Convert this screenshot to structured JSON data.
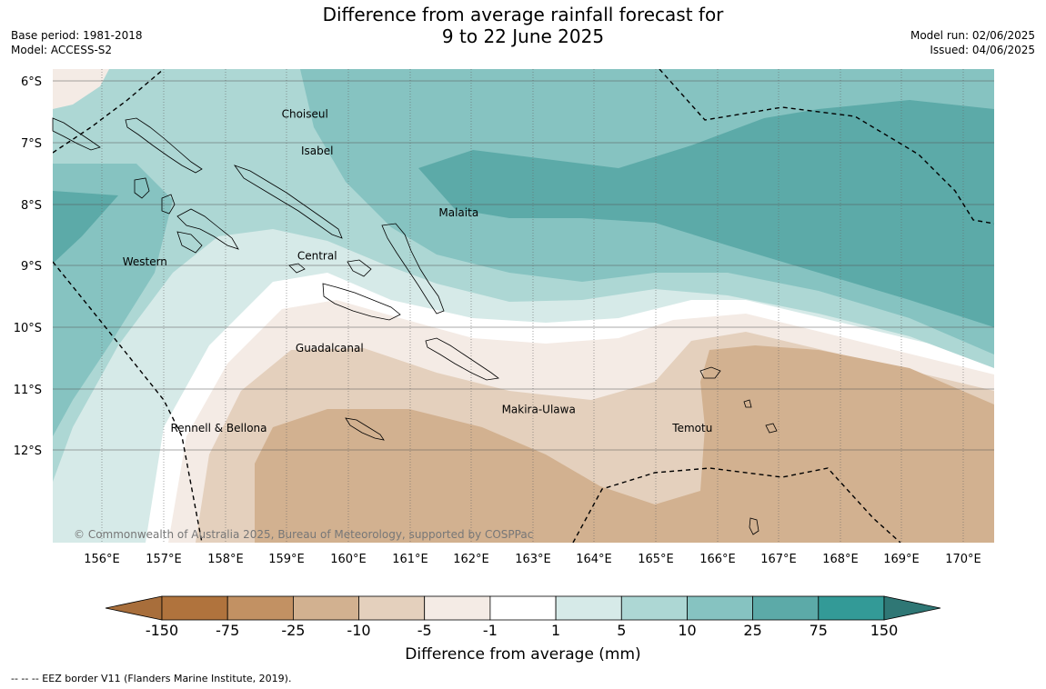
{
  "title_line1": "Difference from average rainfall forecast for",
  "title_line2": "9 to 22 June 2025",
  "base_period": "Base period: 1981-2018",
  "model": "Model: ACCESS-S2",
  "model_run": "Model run: 02/06/2025",
  "issued": "Issued: 04/06/2025",
  "copyright": "© Commonwealth of Australia 2025, Bureau of Meteorology, supported by COSPPac",
  "lat_labels": [
    "6°S",
    "7°S",
    "8°S",
    "9°S",
    "10°S",
    "11°S",
    "12°S"
  ],
  "lon_labels": [
    "156°E",
    "157°E",
    "158°E",
    "159°E",
    "160°E",
    "161°E",
    "162°E",
    "163°E",
    "164°E",
    "165°E",
    "166°E",
    "167°E",
    "168°E",
    "169°E",
    "170°E"
  ],
  "region_labels": [
    {
      "name": "Choiseul",
      "lon": 159.3,
      "lat": -6.6
    },
    {
      "name": "Isabel",
      "lon": 159.5,
      "lat": -7.2
    },
    {
      "name": "Malaita",
      "lon": 161.8,
      "lat": -8.2
    },
    {
      "name": "Central",
      "lon": 159.5,
      "lat": -8.9
    },
    {
      "name": "Western",
      "lon": 156.7,
      "lat": -9.0
    },
    {
      "name": "Guadalcanal",
      "lon": 159.7,
      "lat": -10.4
    },
    {
      "name": "Makira-Ulawa",
      "lon": 163.1,
      "lat": -11.4
    },
    {
      "name": "Rennell & Bellona",
      "lon": 157.9,
      "lat": -11.7
    },
    {
      "name": "Temotu",
      "lon": 165.6,
      "lat": -11.7
    }
  ],
  "colorbar": {
    "ticks": [
      "-150",
      "-75",
      "-25",
      "-10",
      "-5",
      "-1",
      "1",
      "5",
      "10",
      "25",
      "75",
      "150"
    ],
    "colors": [
      "#a86e3b",
      "#b0733d",
      "#c29163",
      "#d2b190",
      "#e4d0bd",
      "#f4ebe5",
      "#ffffff",
      "#d6eae8",
      "#add7d4",
      "#86c3c1",
      "#5caaa8",
      "#339a97",
      "#2f7775"
    ],
    "title": "Difference from average (mm)"
  },
  "footnote": "--  --  -- EEZ border V11 (Flanders Marine Institute, 2019)."
}
